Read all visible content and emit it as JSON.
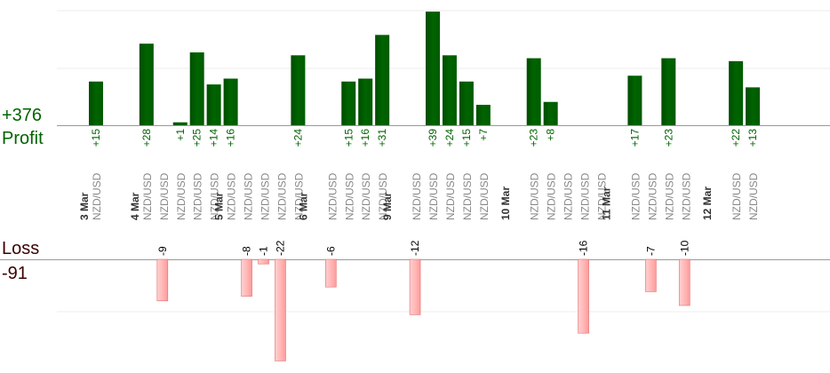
{
  "summary": {
    "profit_total": "+376",
    "profit_label": "Profit",
    "loss_label": "Loss",
    "loss_total": "-91"
  },
  "colors": {
    "profit_bar": "#006400",
    "profit_text": "#006400",
    "loss_fill": "#ffb8b8",
    "loss_stroke": "#e07070",
    "axis": "#999999",
    "grid": "#eeeeee",
    "pair_text": "#888888",
    "date_text": "#333333"
  },
  "chart_data": {
    "type": "bar",
    "grid": true,
    "columns": [
      {
        "date": "3 Mar",
        "pair": "NZD/USD",
        "profit": 15,
        "profit_label": "+15"
      },
      {
        "date": "",
        "pair": "",
        "profit": null
      },
      {
        "date": "",
        "pair": "",
        "profit": null
      },
      {
        "date": "4 Mar",
        "pair": "NZD/USD",
        "profit": 28,
        "profit_label": "+28"
      },
      {
        "date": "",
        "pair": "NZD/USD",
        "loss": -9,
        "loss_label": "-9"
      },
      {
        "date": "",
        "pair": "NZD/USD",
        "profit": 1,
        "profit_label": "+1"
      },
      {
        "date": "",
        "pair": "NZD/USD",
        "profit": 25,
        "profit_label": "+25"
      },
      {
        "date": "",
        "pair": "NZD/USD",
        "profit": 14,
        "profit_label": "+14"
      },
      {
        "date": "5 Mar",
        "pair": "NZD/USD",
        "profit": 16,
        "profit_label": "+16"
      },
      {
        "date": "",
        "pair": "NZD/USD",
        "loss": -8,
        "loss_label": "-8"
      },
      {
        "date": "",
        "pair": "NZD/USD",
        "loss": -1,
        "loss_label": "-1"
      },
      {
        "date": "",
        "pair": "NZD/USD",
        "loss": -22,
        "loss_label": "-22"
      },
      {
        "date": "",
        "pair": "NZD/USD",
        "profit": 24,
        "profit_label": "+24"
      },
      {
        "date": "6 Mar",
        "pair": "",
        "profit": null
      },
      {
        "date": "",
        "pair": "NZD/USD",
        "loss": -6,
        "loss_label": "-6"
      },
      {
        "date": "",
        "pair": "NZD/USD",
        "profit": 15,
        "profit_label": "+15"
      },
      {
        "date": "",
        "pair": "NZD/USD",
        "profit": 16,
        "profit_label": "+16"
      },
      {
        "date": "",
        "pair": "NZD/USD",
        "profit": 31,
        "profit_label": "+31"
      },
      {
        "date": "9 Mar",
        "pair": "",
        "profit": null
      },
      {
        "date": "",
        "pair": "NZD/USD",
        "loss": -12,
        "loss_label": "-12"
      },
      {
        "date": "",
        "pair": "NZD/USD",
        "profit": 39,
        "profit_label": "+39"
      },
      {
        "date": "",
        "pair": "NZD/USD",
        "profit": 24,
        "profit_label": "+24"
      },
      {
        "date": "",
        "pair": "NZD/USD",
        "profit": 15,
        "profit_label": "+15"
      },
      {
        "date": "",
        "pair": "NZD/USD",
        "profit": 7,
        "profit_label": "+7"
      },
      {
        "date": "",
        "pair": "",
        "profit": null
      },
      {
        "date": "10 Mar",
        "pair": "",
        "profit": null
      },
      {
        "date": "",
        "pair": "NZD/USD",
        "profit": 23,
        "profit_label": "+23"
      },
      {
        "date": "",
        "pair": "NZD/USD",
        "profit": 8,
        "profit_label": "+8"
      },
      {
        "date": "",
        "pair": "NZD/USD",
        "loss": null
      },
      {
        "date": "",
        "pair": "NZD/USD",
        "loss": -16,
        "loss_label": "-16"
      },
      {
        "date": "",
        "pair": "NZD/USD",
        "loss": null
      },
      {
        "date": "11 Mar",
        "pair": "",
        "profit": null
      },
      {
        "date": "",
        "pair": "NZD/USD",
        "profit": 17,
        "profit_label": "+17"
      },
      {
        "date": "",
        "pair": "NZD/USD",
        "loss": -7,
        "loss_label": "-7"
      },
      {
        "date": "",
        "pair": "NZD/USD",
        "profit": 23,
        "profit_label": "+23"
      },
      {
        "date": "",
        "pair": "NZD/USD",
        "loss": -10,
        "loss_label": "-10"
      },
      {
        "date": "",
        "pair": "",
        "profit": null
      },
      {
        "date": "12 Mar",
        "pair": "",
        "profit": null
      },
      {
        "date": "",
        "pair": "NZD/USD",
        "profit": 22,
        "profit_label": "+22"
      },
      {
        "date": "",
        "pair": "NZD/USD",
        "profit": 13,
        "profit_label": "+13"
      }
    ]
  }
}
